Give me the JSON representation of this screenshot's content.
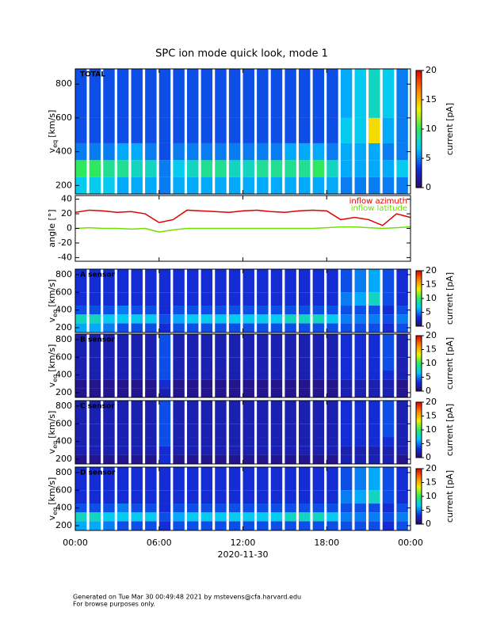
{
  "chart_data": [
    {
      "type": "heatmap",
      "title": "SPC ion mode quick look, mode 1",
      "label": "TOTAL",
      "ylabel_var": "v",
      "ylabel_sub": "eq",
      "ylabel_unit": "[km/s]",
      "xlim": [
        0,
        24
      ],
      "xticks": [
        0,
        6,
        12,
        18,
        24
      ],
      "ylim": [
        150,
        890
      ],
      "yticks": [
        200,
        400,
        600,
        800
      ],
      "xbins": [
        0,
        1,
        2,
        3,
        4,
        5,
        6,
        7,
        8,
        9,
        10,
        11,
        12,
        13,
        14,
        15,
        16,
        17,
        18,
        19,
        20,
        21,
        22,
        23,
        24
      ],
      "vbins": [
        150,
        250,
        350,
        450,
        600,
        890
      ],
      "values": [
        [
          7,
          7,
          7,
          6,
          6,
          6,
          5,
          6,
          6,
          6,
          6,
          6,
          6,
          6,
          6,
          6,
          6,
          6,
          6,
          5,
          5,
          5,
          5,
          5
        ],
        [
          10,
          10,
          9,
          9,
          8,
          8,
          5,
          7,
          8,
          9,
          9,
          8,
          8,
          9,
          9,
          9,
          9,
          10,
          8,
          6,
          6,
          6,
          6,
          7
        ],
        [
          5,
          5,
          5,
          6,
          6,
          5,
          4,
          5,
          5,
          5,
          5,
          5,
          5,
          5,
          5,
          6,
          6,
          6,
          5,
          6,
          6,
          6,
          5,
          5
        ],
        [
          4,
          4,
          4,
          4,
          4,
          4,
          4,
          4,
          4,
          4,
          4,
          4,
          4,
          4,
          4,
          4,
          4,
          4,
          4,
          7,
          7,
          14,
          6,
          5
        ],
        [
          4,
          4,
          4,
          4,
          4,
          4,
          4,
          4,
          4,
          4,
          4,
          4,
          4,
          4,
          4,
          4,
          4,
          4,
          4,
          6,
          7,
          8,
          7,
          5
        ]
      ],
      "clim": [
        0,
        20
      ],
      "cticks": [
        0,
        5,
        10,
        15,
        20
      ],
      "clabel": "current [pA]",
      "colormap": [
        "#2a0a6a",
        "#1030e0",
        "#00c8ff",
        "#30e860",
        "#f0f000",
        "#ff8000",
        "#e00000"
      ]
    },
    {
      "type": "line",
      "ylabel": "angle [°]",
      "xlim": [
        0,
        24
      ],
      "xticks": [
        0,
        6,
        12,
        18,
        24
      ],
      "ylim": [
        -45,
        45
      ],
      "yticks": [
        -40,
        -20,
        0,
        20,
        40
      ],
      "x": [
        0,
        1,
        2,
        3,
        4,
        5,
        6,
        7,
        8,
        9,
        10,
        11,
        12,
        13,
        14,
        15,
        16,
        17,
        18,
        19,
        20,
        21,
        22,
        23,
        24
      ],
      "series": [
        {
          "name": "inflow azimuth",
          "color": "#e00000",
          "values": [
            22,
            25,
            24,
            22,
            23,
            20,
            8,
            12,
            25,
            24,
            23,
            22,
            24,
            25,
            23,
            22,
            24,
            25,
            24,
            12,
            15,
            12,
            4,
            20,
            15
          ]
        },
        {
          "name": "inflow latitude",
          "color": "#70e000",
          "values": [
            0,
            1,
            0,
            0,
            -1,
            0,
            -5,
            -2,
            0,
            0,
            0,
            0,
            0,
            0,
            0,
            0,
            0,
            0,
            1,
            2,
            2,
            1,
            0,
            1,
            2
          ]
        }
      ]
    },
    {
      "type": "heatmap",
      "label": "A sensor",
      "ylabel_var": "v",
      "ylabel_sub": "eq",
      "ylabel_unit": "[km/s]",
      "xlim": [
        0,
        24
      ],
      "xticks": [
        0,
        6,
        12,
        18,
        24
      ],
      "ylim": [
        146,
        862
      ],
      "yticks": [
        200,
        400,
        600,
        800
      ],
      "xbins": [
        0,
        1,
        2,
        3,
        4,
        5,
        6,
        7,
        8,
        9,
        10,
        11,
        12,
        13,
        14,
        15,
        16,
        17,
        18,
        19,
        20,
        21,
        22,
        23,
        24
      ],
      "vbins": [
        146,
        250,
        350,
        450,
        600,
        862
      ],
      "values": [
        [
          6,
          6,
          5,
          4,
          4,
          4,
          3,
          4,
          4,
          4,
          4,
          4,
          4,
          4,
          4,
          4,
          4,
          4,
          4,
          4,
          4,
          4,
          3,
          4
        ],
        [
          8,
          8,
          7,
          7,
          7,
          7,
          4,
          6,
          7,
          7,
          7,
          7,
          7,
          7,
          7,
          8,
          8,
          8,
          7,
          5,
          5,
          5,
          4,
          5
        ],
        [
          4,
          4,
          4,
          5,
          4,
          4,
          3,
          4,
          4,
          4,
          4,
          4,
          4,
          4,
          4,
          4,
          4,
          4,
          4,
          4,
          4,
          4,
          3,
          4
        ],
        [
          3,
          3,
          3,
          3,
          3,
          3,
          3,
          3,
          3,
          3,
          3,
          3,
          3,
          3,
          3,
          3,
          3,
          3,
          3,
          5,
          6,
          8,
          4,
          3
        ],
        [
          3,
          3,
          3,
          3,
          3,
          3,
          3,
          3,
          3,
          3,
          3,
          3,
          3,
          3,
          3,
          3,
          3,
          3,
          3,
          4,
          5,
          6,
          4,
          3
        ]
      ],
      "clim": [
        0,
        20
      ],
      "cticks": [
        0,
        5,
        10,
        15,
        20
      ],
      "clabel": "current [pA]",
      "colormap": [
        "#2a0a6a",
        "#1030e0",
        "#00c8ff",
        "#30e860",
        "#f0f000",
        "#ff8000",
        "#e00000"
      ]
    },
    {
      "type": "heatmap",
      "label": "B sensor",
      "ylabel_var": "v",
      "ylabel_sub": "eq",
      "ylabel_unit": "[km/s]",
      "xlim": [
        0,
        24
      ],
      "xticks": [
        0,
        6,
        12,
        18,
        24
      ],
      "ylim": [
        146,
        862
      ],
      "yticks": [
        200,
        400,
        600,
        800
      ],
      "xbins": [
        0,
        1,
        2,
        3,
        4,
        5,
        6,
        7,
        8,
        9,
        10,
        11,
        12,
        13,
        14,
        15,
        16,
        17,
        18,
        19,
        20,
        21,
        22,
        23,
        24
      ],
      "vbins": [
        146,
        250,
        350,
        450,
        600,
        862
      ],
      "values": [
        [
          1,
          1,
          1,
          1,
          1,
          1,
          2,
          1,
          1,
          1,
          1,
          1,
          1,
          1,
          1,
          1,
          1,
          1,
          1,
          2,
          2,
          2,
          2,
          1
        ],
        [
          1,
          1,
          1,
          1,
          1,
          1,
          3,
          1,
          1,
          1,
          1,
          1,
          1,
          1,
          1,
          1,
          1,
          1,
          1,
          2,
          2,
          2,
          2,
          1
        ],
        [
          2,
          2,
          2,
          2,
          2,
          2,
          4,
          2,
          2,
          2,
          2,
          2,
          2,
          2,
          2,
          2,
          2,
          2,
          2,
          3,
          3,
          3,
          3,
          2
        ],
        [
          2,
          2,
          2,
          2,
          2,
          2,
          4,
          2,
          2,
          2,
          2,
          2,
          2,
          2,
          2,
          2,
          2,
          2,
          2,
          3,
          3,
          3,
          4,
          2
        ],
        [
          2,
          2,
          2,
          2,
          2,
          2,
          4,
          2,
          2,
          2,
          2,
          2,
          2,
          2,
          2,
          2,
          2,
          2,
          2,
          3,
          3,
          3,
          4,
          2
        ]
      ],
      "clim": [
        0,
        20
      ],
      "cticks": [
        0,
        5,
        10,
        15,
        20
      ],
      "clabel": "current [pA]",
      "colormap": [
        "#2a0a6a",
        "#1030e0",
        "#00c8ff",
        "#30e860",
        "#f0f000",
        "#ff8000",
        "#e00000"
      ]
    },
    {
      "type": "heatmap",
      "label": "C sensor",
      "ylabel_var": "v",
      "ylabel_sub": "eq",
      "ylabel_unit": "[km/s]",
      "xlim": [
        0,
        24
      ],
      "xticks": [
        0,
        6,
        12,
        18,
        24
      ],
      "ylim": [
        146,
        862
      ],
      "yticks": [
        200,
        400,
        600,
        800
      ],
      "xbins": [
        0,
        1,
        2,
        3,
        4,
        5,
        6,
        7,
        8,
        9,
        10,
        11,
        12,
        13,
        14,
        15,
        16,
        17,
        18,
        19,
        20,
        21,
        22,
        23,
        24
      ],
      "vbins": [
        146,
        250,
        350,
        450,
        600,
        862
      ],
      "values": [
        [
          1,
          1,
          1,
          1,
          1,
          1,
          3,
          1,
          1,
          1,
          1,
          1,
          1,
          1,
          1,
          1,
          1,
          1,
          1,
          2,
          2,
          2,
          2,
          1
        ],
        [
          2,
          2,
          2,
          2,
          2,
          2,
          3,
          2,
          2,
          2,
          2,
          2,
          2,
          2,
          2,
          2,
          2,
          2,
          2,
          2,
          2,
          2,
          2,
          2
        ],
        [
          2,
          2,
          2,
          2,
          2,
          2,
          4,
          2,
          2,
          2,
          2,
          2,
          2,
          2,
          2,
          2,
          2,
          2,
          2,
          3,
          3,
          3,
          3,
          2
        ],
        [
          2,
          2,
          2,
          2,
          2,
          2,
          4,
          2,
          2,
          2,
          2,
          2,
          2,
          2,
          2,
          2,
          2,
          2,
          2,
          3,
          3,
          3,
          4,
          2
        ],
        [
          2,
          2,
          2,
          2,
          2,
          2,
          4,
          2,
          2,
          2,
          2,
          2,
          2,
          2,
          2,
          2,
          2,
          2,
          2,
          3,
          3,
          3,
          4,
          2
        ]
      ],
      "clim": [
        0,
        20
      ],
      "cticks": [
        0,
        5,
        10,
        15,
        20
      ],
      "clabel": "current [pA]",
      "colormap": [
        "#2a0a6a",
        "#1030e0",
        "#00c8ff",
        "#30e860",
        "#f0f000",
        "#ff8000",
        "#e00000"
      ]
    },
    {
      "type": "heatmap",
      "label": "D sensor",
      "ylabel_var": "v",
      "ylabel_sub": "eq",
      "ylabel_unit": "[km/s]",
      "xlim": [
        0,
        24
      ],
      "xticks": [
        {
          "value": 0,
          "label": "00:00"
        },
        {
          "value": 6,
          "label": "06:00"
        },
        {
          "value": 12,
          "label": "12:00"
        },
        {
          "value": 18,
          "label": "18:00"
        },
        {
          "value": 24,
          "label": "00:00"
        }
      ],
      "xlabel": "2020-11-30",
      "ylim": [
        146,
        862
      ],
      "yticks": [
        200,
        400,
        600,
        800
      ],
      "xbins": [
        0,
        1,
        2,
        3,
        4,
        5,
        6,
        7,
        8,
        9,
        10,
        11,
        12,
        13,
        14,
        15,
        16,
        17,
        18,
        19,
        20,
        21,
        22,
        23,
        24
      ],
      "vbins": [
        146,
        250,
        350,
        450,
        600,
        862
      ],
      "values": [
        [
          6,
          6,
          5,
          4,
          4,
          4,
          3,
          4,
          4,
          4,
          4,
          4,
          4,
          4,
          4,
          4,
          4,
          4,
          4,
          4,
          4,
          4,
          3,
          4
        ],
        [
          8,
          8,
          7,
          7,
          7,
          7,
          4,
          6,
          7,
          7,
          7,
          7,
          7,
          7,
          7,
          8,
          8,
          8,
          7,
          5,
          5,
          5,
          4,
          5
        ],
        [
          4,
          4,
          4,
          5,
          4,
          4,
          3,
          4,
          4,
          4,
          4,
          4,
          4,
          4,
          4,
          4,
          4,
          4,
          4,
          4,
          4,
          4,
          3,
          4
        ],
        [
          3,
          3,
          3,
          3,
          3,
          3,
          3,
          3,
          3,
          3,
          3,
          3,
          3,
          3,
          3,
          3,
          3,
          3,
          3,
          5,
          6,
          8,
          4,
          3
        ],
        [
          3,
          3,
          3,
          3,
          3,
          3,
          3,
          3,
          3,
          3,
          3,
          3,
          3,
          3,
          3,
          3,
          3,
          3,
          3,
          4,
          5,
          6,
          4,
          3
        ]
      ],
      "clim": [
        0,
        20
      ],
      "cticks": [
        0,
        5,
        10,
        15,
        20
      ],
      "clabel": "current [pA]",
      "colormap": [
        "#2a0a6a",
        "#1030e0",
        "#00c8ff",
        "#30e860",
        "#f0f000",
        "#ff8000",
        "#e00000"
      ]
    }
  ],
  "footer": [
    "Generated on Tue Mar 30 00:49:48 2021 by mstevens@cfa.harvard.edu",
    "For browse purposes only."
  ]
}
